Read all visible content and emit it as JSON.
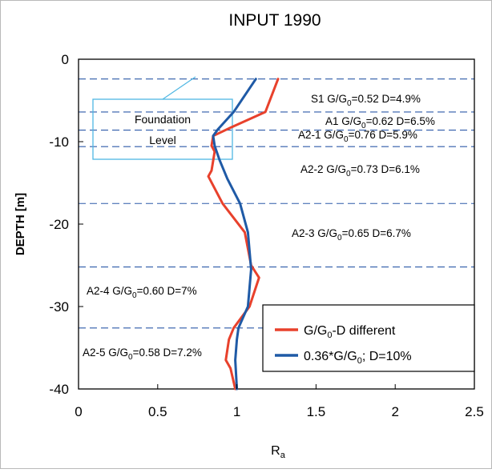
{
  "chart_data": {
    "type": "line",
    "title": "INPUT 1990",
    "xlabel": "R",
    "xlabel_sub": "a",
    "ylabel": "DEPTH [m]",
    "xlim": [
      0,
      2.5
    ],
    "ylim": [
      -40,
      0
    ],
    "x_ticks": [
      "0",
      "0.5",
      "1",
      "1.5",
      "2",
      "2.5"
    ],
    "y_ticks": [
      "0",
      "-10",
      "-20",
      "-30",
      "-40"
    ],
    "legend_position": "bottom-right",
    "series": [
      {
        "name": "G/G0-D different",
        "color": "#e8412c",
        "points": [
          [
            1.26,
            -2.4
          ],
          [
            1.18,
            -6.4
          ],
          [
            0.96,
            -8.3
          ],
          [
            0.85,
            -9.3
          ],
          [
            0.84,
            -10.5
          ],
          [
            0.86,
            -11.2
          ],
          [
            0.84,
            -13.5
          ],
          [
            0.82,
            -14.2
          ],
          [
            0.91,
            -17.5
          ],
          [
            1.05,
            -21.0
          ],
          [
            1.09,
            -25.0
          ],
          [
            1.14,
            -26.5
          ],
          [
            1.08,
            -30.0
          ],
          [
            0.98,
            -32.6
          ],
          [
            0.95,
            -34.0
          ],
          [
            0.93,
            -36.5
          ],
          [
            0.96,
            -37.5
          ],
          [
            0.99,
            -40.0
          ]
        ]
      },
      {
        "name": "0.36*G/G0; D=10%",
        "color": "#1f5aa6",
        "points": [
          [
            1.12,
            -2.4
          ],
          [
            0.98,
            -6.4
          ],
          [
            0.88,
            -8.5
          ],
          [
            0.85,
            -9.3
          ],
          [
            0.86,
            -10.5
          ],
          [
            0.89,
            -12.2
          ],
          [
            0.94,
            -14.5
          ],
          [
            1.02,
            -17.5
          ],
          [
            1.07,
            -21.0
          ],
          [
            1.09,
            -25.5
          ],
          [
            1.07,
            -30.0
          ],
          [
            1.01,
            -32.6
          ],
          [
            1.0,
            -34.0
          ],
          [
            0.99,
            -36.5
          ],
          [
            1.0,
            -40.0
          ]
        ]
      }
    ],
    "layer_boundaries": [
      -2.4,
      -6.4,
      -8.6,
      -10.6,
      -17.5,
      -25.2,
      -32.6
    ],
    "layer_labels": [
      {
        "main": "S1 G/G",
        "sub": "0",
        "rest": "=0.52 D=4.9%"
      },
      {
        "main": "A1 G/G",
        "sub": "0",
        "rest": "=0.62 D=6.5%"
      },
      {
        "main": "A2-1 G/G",
        "sub": "0",
        "rest": "=0.76 D=5.9%"
      },
      {
        "main": "A2-2 G/G",
        "sub": "0",
        "rest": "=0.73 D=6.1%"
      },
      {
        "main": "A2-3 G/G",
        "sub": "0",
        "rest": "=0.65 D=6.7%"
      },
      {
        "main": "A2-4 G/G",
        "sub": "0",
        "rest": "=0.60 D=7%"
      },
      {
        "main": "A2-5 G/G",
        "sub": "0",
        "rest": "=0.58 D=7.2%"
      }
    ],
    "foundation_annotation": {
      "line1": "Foundation",
      "line2": "Level"
    },
    "legend": [
      {
        "main": "G/G",
        "sub": "0",
        "rest": "-D different",
        "color": "#e8412c"
      },
      {
        "main": "0.36*G/G",
        "sub": "0",
        "rest": "; D=10%",
        "color": "#1f5aa6"
      }
    ]
  }
}
